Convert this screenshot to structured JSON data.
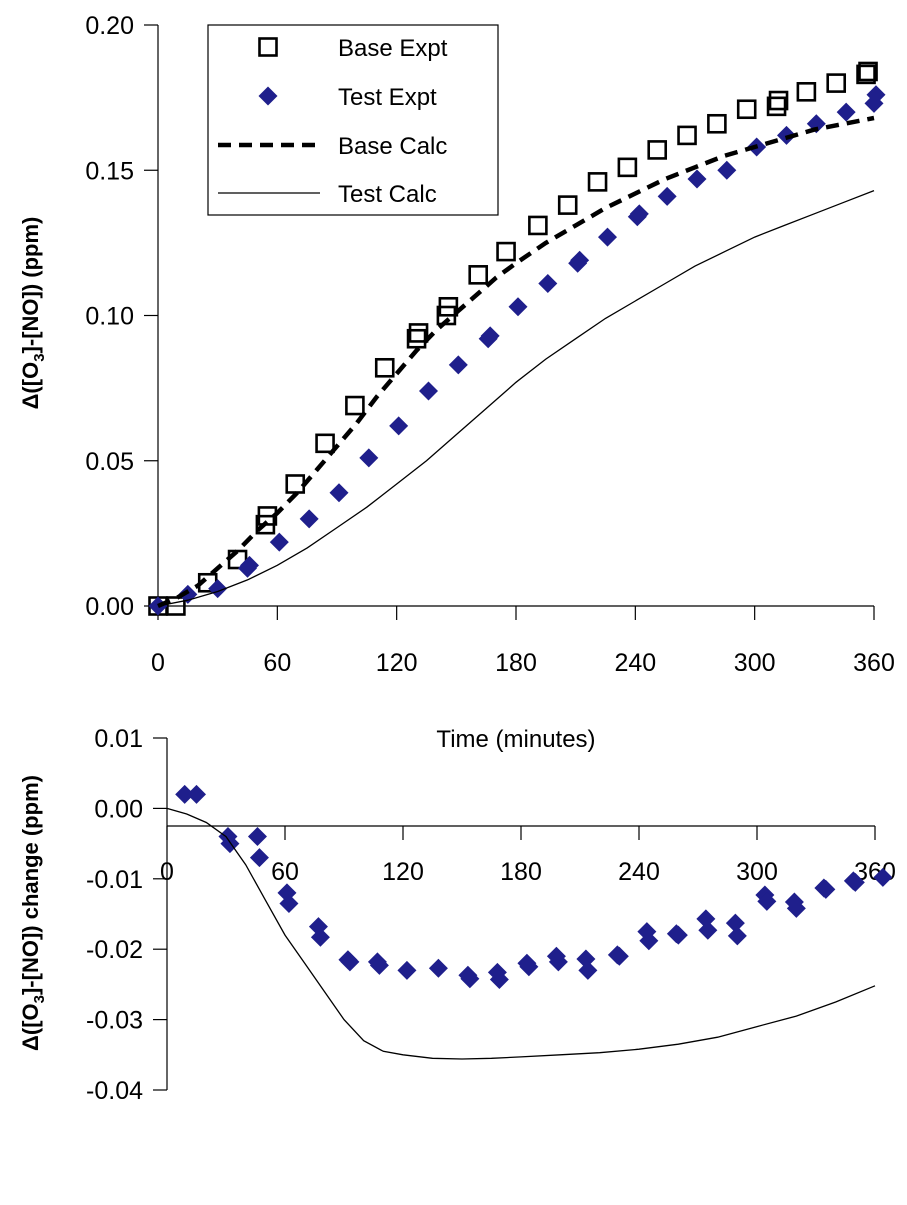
{
  "chart_data": [
    {
      "type": "scatter",
      "xlabel": "Time (minutes)",
      "ylabel": "Δ([O₃]-[NO]) (ppm)",
      "ylabel_main": "Δ([O",
      "ylabel_sub": "3",
      "ylabel_end": "]-[NO]) (ppm)",
      "xlim": [
        0,
        360
      ],
      "ylim": [
        0.0,
        0.2
      ],
      "xticks": [
        "0",
        "60",
        "120",
        "180",
        "240",
        "300",
        "360"
      ],
      "yticks": [
        "0.00",
        "0.05",
        "0.10",
        "0.15",
        "0.20"
      ],
      "grid": false,
      "legend_position": "top-left",
      "legend": [
        "Base Expt",
        "Test Expt",
        "Base Calc",
        "Test Calc"
      ],
      "series": [
        {
          "name": "Base Expt",
          "marker": "open-square",
          "color": "#000000",
          "points": [
            [
              0,
              0.0
            ],
            [
              9,
              0.0
            ],
            [
              25,
              0.008
            ],
            [
              40,
              0.016
            ],
            [
              54,
              0.028
            ],
            [
              55,
              0.031
            ],
            [
              69,
              0.042
            ],
            [
              84,
              0.056
            ],
            [
              99,
              0.069
            ],
            [
              114,
              0.082
            ],
            [
              130,
              0.092
            ],
            [
              131,
              0.094
            ],
            [
              145,
              0.1
            ],
            [
              146,
              0.103
            ],
            [
              161,
              0.114
            ],
            [
              175,
              0.122
            ],
            [
              191,
              0.131
            ],
            [
              206,
              0.138
            ],
            [
              221,
              0.146
            ],
            [
              236,
              0.151
            ],
            [
              251,
              0.157
            ],
            [
              266,
              0.162
            ],
            [
              281,
              0.166
            ],
            [
              296,
              0.171
            ],
            [
              311,
              0.172
            ],
            [
              312,
              0.174
            ],
            [
              326,
              0.177
            ],
            [
              341,
              0.18
            ],
            [
              356,
              0.183
            ],
            [
              357,
              0.184
            ]
          ]
        },
        {
          "name": "Test Expt",
          "marker": "filled-diamond",
          "color": "#1f1f8c",
          "points": [
            [
              0,
              0.0
            ],
            [
              15,
              0.004
            ],
            [
              30,
              0.006
            ],
            [
              45,
              0.013
            ],
            [
              46,
              0.014
            ],
            [
              61,
              0.022
            ],
            [
              76,
              0.03
            ],
            [
              91,
              0.039
            ],
            [
              106,
              0.051
            ],
            [
              121,
              0.062
            ],
            [
              136,
              0.074
            ],
            [
              151,
              0.083
            ],
            [
              166,
              0.092
            ],
            [
              167,
              0.093
            ],
            [
              181,
              0.103
            ],
            [
              196,
              0.111
            ],
            [
              211,
              0.118
            ],
            [
              212,
              0.119
            ],
            [
              226,
              0.127
            ],
            [
              241,
              0.134
            ],
            [
              242,
              0.135
            ],
            [
              256,
              0.141
            ],
            [
              271,
              0.147
            ],
            [
              286,
              0.15
            ],
            [
              301,
              0.158
            ],
            [
              316,
              0.162
            ],
            [
              331,
              0.166
            ],
            [
              346,
              0.17
            ],
            [
              360,
              0.173
            ],
            [
              361,
              0.176
            ]
          ]
        },
        {
          "name": "Base Calc",
          "style": "dashed-line",
          "color": "#000000",
          "points": [
            [
              0,
              0.0
            ],
            [
              10,
              0.003
            ],
            [
              20,
              0.007
            ],
            [
              30,
              0.013
            ],
            [
              40,
              0.019
            ],
            [
              50,
              0.026
            ],
            [
              60,
              0.032
            ],
            [
              70,
              0.039
            ],
            [
              80,
              0.047
            ],
            [
              90,
              0.055
            ],
            [
              100,
              0.063
            ],
            [
              110,
              0.072
            ],
            [
              120,
              0.08
            ],
            [
              130,
              0.088
            ],
            [
              140,
              0.095
            ],
            [
              150,
              0.101
            ],
            [
              160,
              0.107
            ],
            [
              170,
              0.113
            ],
            [
              180,
              0.118
            ],
            [
              195,
              0.125
            ],
            [
              210,
              0.131
            ],
            [
              225,
              0.137
            ],
            [
              240,
              0.142
            ],
            [
              255,
              0.147
            ],
            [
              270,
              0.151
            ],
            [
              285,
              0.155
            ],
            [
              300,
              0.158
            ],
            [
              315,
              0.161
            ],
            [
              330,
              0.164
            ],
            [
              345,
              0.166
            ],
            [
              360,
              0.168
            ]
          ]
        },
        {
          "name": "Test Calc",
          "style": "solid-line",
          "color": "#000000",
          "points": [
            [
              0,
              0.0
            ],
            [
              15,
              0.002
            ],
            [
              30,
              0.005
            ],
            [
              45,
              0.009
            ],
            [
              60,
              0.014
            ],
            [
              75,
              0.02
            ],
            [
              90,
              0.027
            ],
            [
              105,
              0.034
            ],
            [
              120,
              0.042
            ],
            [
              135,
              0.05
            ],
            [
              150,
              0.059
            ],
            [
              165,
              0.068
            ],
            [
              180,
              0.077
            ],
            [
              195,
              0.085
            ],
            [
              210,
              0.092
            ],
            [
              225,
              0.099
            ],
            [
              240,
              0.105
            ],
            [
              255,
              0.111
            ],
            [
              270,
              0.117
            ],
            [
              285,
              0.122
            ],
            [
              300,
              0.127
            ],
            [
              315,
              0.131
            ],
            [
              330,
              0.135
            ],
            [
              345,
              0.139
            ],
            [
              360,
              0.143
            ]
          ]
        }
      ]
    },
    {
      "type": "scatter",
      "xlabel": "",
      "ylabel": "Δ([O₃]-[NO]) change (ppm)",
      "ylabel_main": "Δ([O",
      "ylabel_sub": "3",
      "ylabel_end": "]-[NO]) change (ppm)",
      "xlim": [
        0,
        360
      ],
      "ylim": [
        -0.04,
        0.01
      ],
      "xticks": [
        "0",
        "60",
        "120",
        "180",
        "240",
        "300",
        "360"
      ],
      "yticks": [
        "0.01",
        "0.00",
        "-0.01",
        "-0.02",
        "-0.03",
        "-0.04"
      ],
      "grid": false,
      "series": [
        {
          "marker": "filled-diamond",
          "color": "#1f1f8c",
          "points": [
            [
              9,
              0.002
            ],
            [
              15,
              0.002
            ],
            [
              31,
              -0.004
            ],
            [
              32,
              -0.005
            ],
            [
              46,
              -0.004
            ],
            [
              47,
              -0.007
            ],
            [
              61,
              -0.012
            ],
            [
              62,
              -0.0135
            ],
            [
              77,
              -0.0168
            ],
            [
              78,
              -0.0183
            ],
            [
              92,
              -0.0215
            ],
            [
              93,
              -0.0218
            ],
            [
              107,
              -0.0218
            ],
            [
              108,
              -0.0223
            ],
            [
              122,
              -0.023
            ],
            [
              138,
              -0.0227
            ],
            [
              153,
              -0.0237
            ],
            [
              154,
              -0.0242
            ],
            [
              168,
              -0.0233
            ],
            [
              169,
              -0.0243
            ],
            [
              183,
              -0.022
            ],
            [
              184,
              -0.0225
            ],
            [
              198,
              -0.021
            ],
            [
              199,
              -0.0218
            ],
            [
              213,
              -0.0214
            ],
            [
              214,
              -0.023
            ],
            [
              229,
              -0.0208
            ],
            [
              230,
              -0.021
            ],
            [
              244,
              -0.0175
            ],
            [
              245,
              -0.0188
            ],
            [
              259,
              -0.0178
            ],
            [
              260,
              -0.018
            ],
            [
              274,
              -0.0157
            ],
            [
              275,
              -0.0173
            ],
            [
              289,
              -0.0163
            ],
            [
              290,
              -0.0181
            ],
            [
              304,
              -0.0123
            ],
            [
              305,
              -0.0132
            ],
            [
              319,
              -0.0133
            ],
            [
              320,
              -0.0142
            ],
            [
              334,
              -0.0113
            ],
            [
              335,
              -0.0115
            ],
            [
              349,
              -0.0103
            ],
            [
              350,
              -0.0105
            ],
            [
              364,
              -0.0098
            ]
          ]
        },
        {
          "style": "solid-line",
          "color": "#000000",
          "points": [
            [
              0,
              0.0
            ],
            [
              10,
              -0.0008
            ],
            [
              20,
              -0.002
            ],
            [
              30,
              -0.004
            ],
            [
              40,
              -0.008
            ],
            [
              50,
              -0.013
            ],
            [
              60,
              -0.018
            ],
            [
              70,
              -0.022
            ],
            [
              80,
              -0.026
            ],
            [
              90,
              -0.03
            ],
            [
              100,
              -0.033
            ],
            [
              110,
              -0.0345
            ],
            [
              120,
              -0.035
            ],
            [
              135,
              -0.0355
            ],
            [
              150,
              -0.0356
            ],
            [
              165,
              -0.0355
            ],
            [
              180,
              -0.0353
            ],
            [
              200,
              -0.035
            ],
            [
              220,
              -0.0347
            ],
            [
              240,
              -0.0342
            ],
            [
              260,
              -0.0335
            ],
            [
              280,
              -0.0325
            ],
            [
              300,
              -0.031
            ],
            [
              320,
              -0.0295
            ],
            [
              340,
              -0.0275
            ],
            [
              360,
              -0.0252
            ]
          ]
        }
      ]
    }
  ]
}
